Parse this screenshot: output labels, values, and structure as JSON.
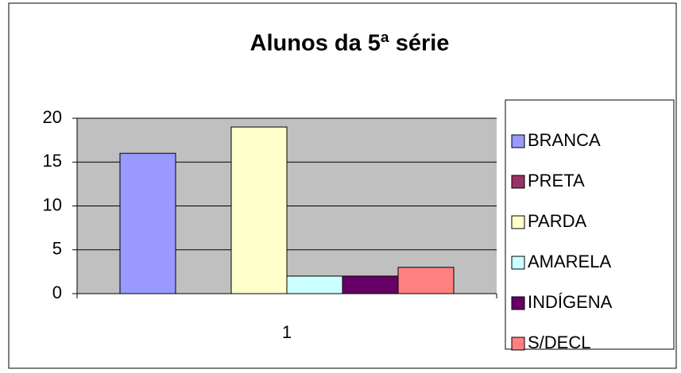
{
  "chart_data": {
    "type": "bar",
    "title": "Alunos da 5ª série",
    "categories": [
      "1"
    ],
    "series": [
      {
        "name": "BRANCA",
        "color": "#9999ff",
        "values": [
          16
        ]
      },
      {
        "name": "PRETA",
        "color": "#993366",
        "values": [
          0
        ]
      },
      {
        "name": "PARDA",
        "color": "#ffffcc",
        "values": [
          19
        ]
      },
      {
        "name": "AMARELA",
        "color": "#ccffff",
        "values": [
          2
        ]
      },
      {
        "name": "INDÍGENA",
        "color": "#660066",
        "values": [
          2
        ]
      },
      {
        "name": "S/DECL",
        "color": "#ff8080",
        "values": [
          3
        ]
      }
    ],
    "ylim": [
      0,
      20
    ],
    "yticks": [
      0,
      5,
      10,
      15,
      20
    ],
    "grid": true,
    "legend": "right"
  }
}
